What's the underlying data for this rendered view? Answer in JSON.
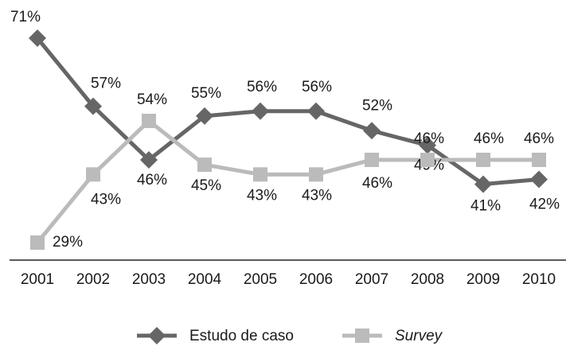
{
  "chart_data": {
    "type": "line",
    "categories": [
      "2001",
      "2002",
      "2003",
      "2004",
      "2005",
      "2006",
      "2007",
      "2008",
      "2009",
      "2010"
    ],
    "series": [
      {
        "name": "Estudo de caso",
        "color": "#666666",
        "marker": "diamond",
        "values": [
          71,
          57,
          46,
          55,
          56,
          56,
          52,
          49,
          41,
          42
        ],
        "value_labels": [
          "71%",
          "57%",
          "46%",
          "55%",
          "56%",
          "56%",
          "52%",
          "49%",
          "41%",
          "42%"
        ]
      },
      {
        "name": "Survey",
        "color": "#bbbbbb",
        "marker": "square",
        "values": [
          29,
          43,
          54,
          45,
          43,
          43,
          46,
          46,
          46,
          46
        ],
        "value_labels": [
          "29%",
          "43%",
          "54%",
          "45%",
          "43%",
          "43%",
          "46%",
          "46%",
          "46%",
          "46%"
        ]
      }
    ]
  }
}
